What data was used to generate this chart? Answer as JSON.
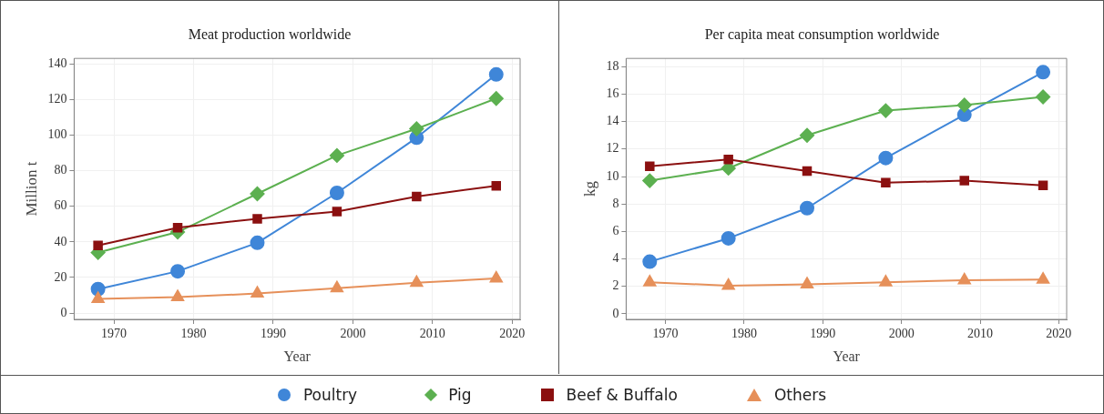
{
  "chart_data": [
    {
      "type": "line",
      "title": "Meat production worldwide",
      "xlabel": "Year",
      "ylabel": "Million t",
      "x": [
        1968,
        1978,
        1988,
        1998,
        2008,
        2018
      ],
      "xlim": [
        1965,
        2021
      ],
      "xticks": [
        1970,
        1980,
        1990,
        2000,
        2010,
        2020
      ],
      "ylim": [
        -3.5,
        143
      ],
      "yticks": [
        0,
        20,
        40,
        60,
        80,
        100,
        120,
        140
      ],
      "grid": true,
      "legend": "bottom",
      "line_style": "solid",
      "series": [
        {
          "name": "Poultry",
          "color": "#3f86d8",
          "marker": "circle",
          "values": [
            13.5,
            23.5,
            39.5,
            67.5,
            98.5,
            134
          ]
        },
        {
          "name": "Pig",
          "color": "#5cb050",
          "marker": "diamond",
          "values": [
            34,
            45.5,
            67,
            88.5,
            103.5,
            120.5
          ]
        },
        {
          "name": "Beef & Buffalo",
          "color": "#8b1010",
          "marker": "square",
          "values": [
            38,
            48,
            53,
            57,
            65.5,
            71.5
          ]
        },
        {
          "name": "Others",
          "color": "#e6905a",
          "marker": "triangle",
          "values": [
            8,
            9,
            11,
            14,
            17,
            19.5
          ]
        }
      ]
    },
    {
      "type": "line",
      "title": "Per capita meat consumption worldwide",
      "xlabel": "Year",
      "ylabel": "kg",
      "x": [
        1968,
        1978,
        1988,
        1998,
        2008,
        2018
      ],
      "xlim": [
        1965,
        2021
      ],
      "xticks": [
        1970,
        1980,
        1990,
        2000,
        2010,
        2020
      ],
      "ylim": [
        -0.4,
        18.6
      ],
      "yticks": [
        0,
        2,
        4,
        6,
        8,
        10,
        12,
        14,
        16,
        18
      ],
      "grid": true,
      "legend": "bottom",
      "line_style": "solid",
      "series": [
        {
          "name": "Poultry",
          "color": "#3f86d8",
          "marker": "circle",
          "values": [
            3.8,
            5.5,
            7.7,
            11.35,
            14.5,
            17.6
          ]
        },
        {
          "name": "Pig",
          "color": "#5cb050",
          "marker": "diamond",
          "values": [
            9.7,
            10.6,
            13,
            14.8,
            15.2,
            15.8
          ]
        },
        {
          "name": "Beef & Buffalo",
          "color": "#8b1010",
          "marker": "square",
          "values": [
            10.75,
            11.25,
            10.4,
            9.55,
            9.7,
            9.35
          ]
        },
        {
          "name": "Others",
          "color": "#e6905a",
          "marker": "triangle",
          "values": [
            2.3,
            2.05,
            2.15,
            2.3,
            2.45,
            2.5
          ]
        }
      ]
    }
  ]
}
